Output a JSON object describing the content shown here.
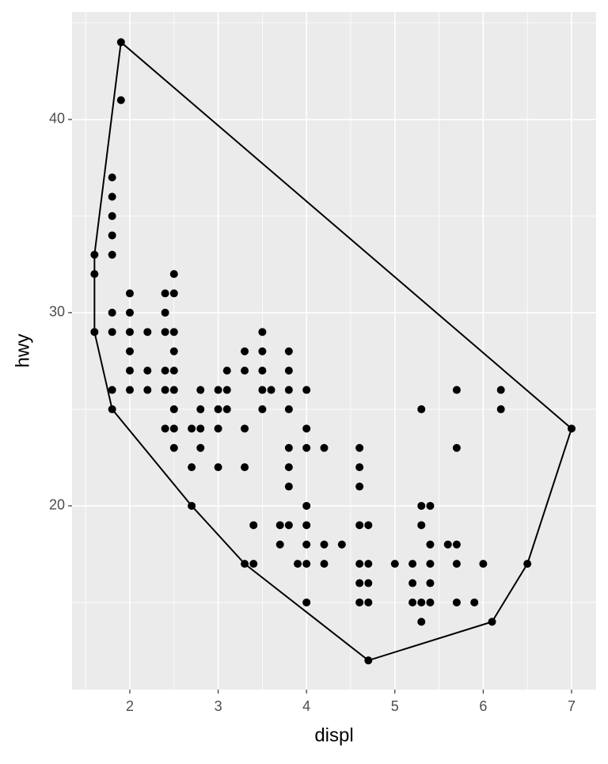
{
  "chart_data": {
    "type": "scatter",
    "x_label": "displ",
    "y_label": "hwy",
    "x": [
      1.6,
      1.6,
      1.6,
      1.8,
      1.8,
      1.8,
      1.8,
      1.8,
      1.8,
      1.8,
      1.8,
      1.8,
      1.9,
      1.9,
      2.0,
      2.0,
      2.0,
      2.0,
      2.0,
      2.0,
      2.2,
      2.2,
      2.2,
      2.4,
      2.4,
      2.4,
      2.4,
      2.4,
      2.4,
      2.5,
      2.5,
      2.5,
      2.5,
      2.5,
      2.5,
      2.5,
      2.5,
      2.5,
      2.7,
      2.7,
      2.7,
      2.8,
      2.8,
      2.8,
      2.8,
      3.0,
      3.0,
      3.0,
      3.0,
      3.1,
      3.1,
      3.1,
      3.3,
      3.3,
      3.3,
      3.3,
      3.3,
      3.4,
      3.4,
      3.5,
      3.5,
      3.5,
      3.5,
      3.5,
      3.6,
      3.7,
      3.7,
      3.8,
      3.8,
      3.8,
      3.8,
      3.8,
      3.8,
      3.8,
      3.8,
      3.9,
      4.0,
      4.0,
      4.0,
      4.0,
      4.0,
      4.0,
      4.0,
      4.0,
      4.2,
      4.2,
      4.2,
      4.4,
      4.6,
      4.6,
      4.6,
      4.6,
      4.6,
      4.6,
      4.6,
      4.7,
      4.7,
      4.7,
      4.7,
      4.7,
      5.0,
      5.2,
      5.2,
      5.2,
      5.3,
      5.3,
      5.3,
      5.3,
      5.3,
      5.4,
      5.4,
      5.4,
      5.4,
      5.4,
      5.6,
      5.7,
      5.7,
      5.7,
      5.7,
      5.7,
      5.9,
      6.0,
      6.1,
      6.2,
      6.2,
      6.5,
      7.0
    ],
    "y": [
      33,
      32,
      29,
      37,
      36,
      35,
      34,
      33,
      30,
      29,
      26,
      25,
      44,
      41,
      31,
      30,
      29,
      28,
      27,
      26,
      29,
      27,
      26,
      31,
      30,
      29,
      27,
      26,
      24,
      32,
      31,
      29,
      28,
      27,
      26,
      25,
      24,
      23,
      24,
      22,
      20,
      26,
      25,
      24,
      23,
      26,
      25,
      24,
      22,
      27,
      26,
      25,
      28,
      27,
      24,
      22,
      17,
      19,
      17,
      29,
      28,
      27,
      26,
      25,
      26,
      19,
      18,
      28,
      27,
      26,
      25,
      23,
      22,
      21,
      19,
      17,
      26,
      24,
      23,
      20,
      19,
      18,
      17,
      15,
      23,
      18,
      17,
      18,
      23,
      22,
      21,
      19,
      17,
      16,
      15,
      19,
      17,
      16,
      15,
      12,
      17,
      17,
      16,
      15,
      25,
      20,
      19,
      15,
      14,
      20,
      18,
      17,
      16,
      15,
      18,
      26,
      23,
      18,
      17,
      15,
      15,
      17,
      14,
      26,
      25,
      17,
      24
    ],
    "color": "#000000",
    "hull": {
      "x": [
        1.9,
        7.0,
        6.5,
        6.1,
        4.7,
        3.3,
        2.7,
        1.8,
        1.6,
        1.6,
        1.9
      ],
      "y": [
        44,
        24,
        17,
        14,
        12,
        17,
        20,
        25,
        29,
        33,
        44
      ],
      "color": "#000000"
    },
    "xlim": [
      1.346,
      7.278
    ],
    "ylim": [
      10.49,
      45.57
    ],
    "xticks": [
      2,
      3,
      4,
      5,
      6,
      7
    ],
    "yticks": [
      20,
      30,
      40
    ],
    "xminor": [
      1.5,
      2.5,
      3.5,
      4.5,
      5.5,
      6.5
    ],
    "yminor": [
      15,
      25,
      35,
      45
    ],
    "grid": true
  }
}
